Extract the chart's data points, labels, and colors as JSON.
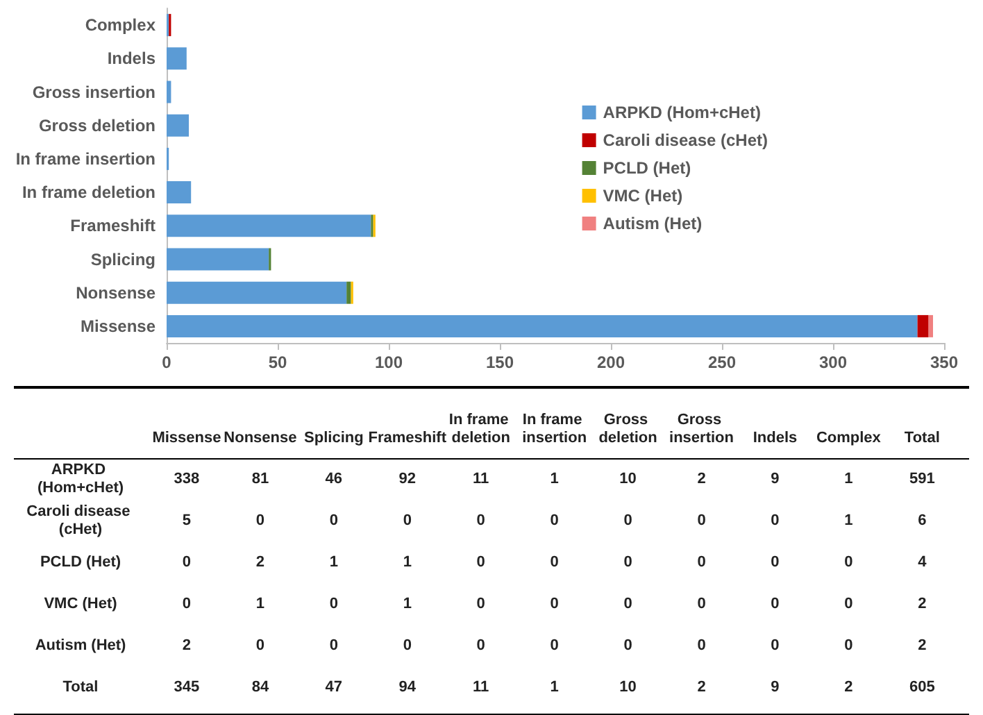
{
  "chart_data": [
    {
      "type": "bar",
      "orientation": "horizontal",
      "stacked": true,
      "categories": [
        "Complex",
        "Indels",
        "Gross insertion",
        "Gross deletion",
        "In frame insertion",
        "In frame deletion",
        "Frameshift",
        "Splicing",
        "Nonsense",
        "Missense"
      ],
      "series": [
        {
          "name": "ARPKD (Hom+cHet)",
          "color": "#5b9bd5",
          "values": [
            1,
            9,
            2,
            10,
            1,
            11,
            92,
            46,
            81,
            338
          ]
        },
        {
          "name": "Caroli disease (cHet)",
          "color": "#c00000",
          "values": [
            1,
            0,
            0,
            0,
            0,
            0,
            0,
            0,
            0,
            5
          ]
        },
        {
          "name": "PCLD (Het)",
          "color": "#548235",
          "values": [
            0,
            0,
            0,
            0,
            0,
            0,
            1,
            1,
            2,
            0
          ]
        },
        {
          "name": "VMC (Het)",
          "color": "#ffc000",
          "values": [
            0,
            0,
            0,
            0,
            0,
            0,
            1,
            0,
            1,
            0
          ]
        },
        {
          "name": "Autism (Het)",
          "color": "#f08080",
          "values": [
            0,
            0,
            0,
            0,
            0,
            0,
            0,
            0,
            0,
            2
          ]
        }
      ],
      "xlim": [
        0,
        350
      ],
      "xticks": [
        0,
        50,
        100,
        150,
        200,
        250,
        300,
        350
      ],
      "legend": "top right"
    },
    {
      "type": "heatmap",
      "data_labels": true,
      "categories": [
        "Missense",
        "Nonsense",
        "Splicing",
        "Frameshift",
        "In frame deletion",
        "In frame insertion",
        "Gross deletion",
        "Gross insertion",
        "Indels",
        "Complex",
        "Total"
      ],
      "y_categories": [
        "ARPKD (Hom+cHet)",
        "Caroli disease (cHet)",
        "PCLD (Het)",
        "VMC (Het)",
        "Autism (Het)",
        "Total"
      ],
      "cells": [
        [
          338,
          81,
          46,
          92,
          11,
          1,
          10,
          2,
          9,
          1,
          591
        ],
        [
          5,
          0,
          0,
          0,
          0,
          0,
          0,
          0,
          0,
          1,
          6
        ],
        [
          0,
          2,
          1,
          1,
          0,
          0,
          0,
          0,
          0,
          0,
          4
        ],
        [
          0,
          1,
          0,
          1,
          0,
          0,
          0,
          0,
          0,
          0,
          2
        ],
        [
          2,
          0,
          0,
          0,
          0,
          0,
          0,
          0,
          0,
          0,
          2
        ],
        [
          345,
          84,
          47,
          94,
          11,
          1,
          10,
          2,
          9,
          2,
          605
        ]
      ]
    }
  ]
}
